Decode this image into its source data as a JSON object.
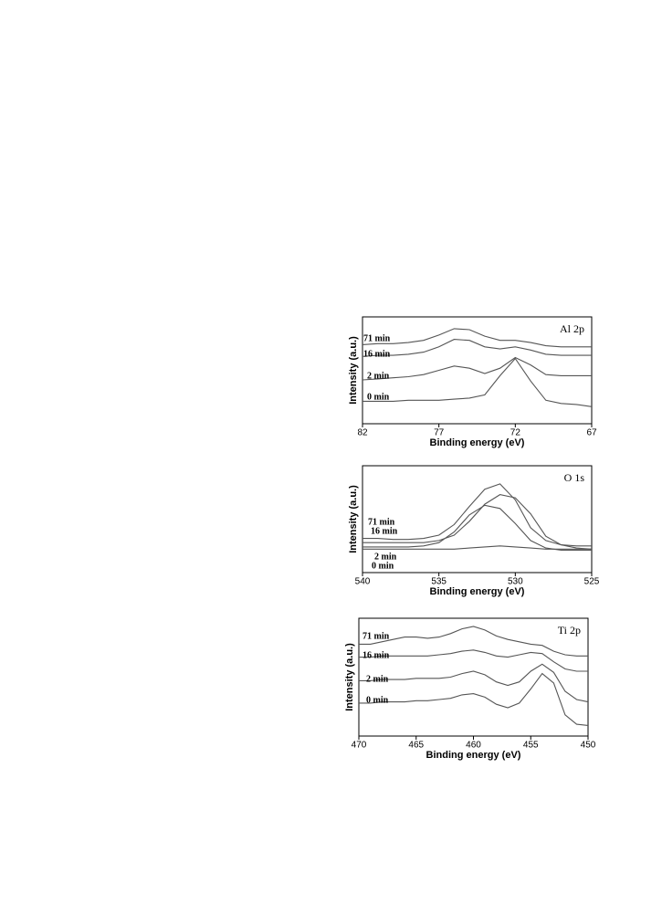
{
  "chart_data": [
    {
      "type": "line",
      "title": "Al 2p",
      "xlabel": "Binding energy (eV)",
      "ylabel": "Intensity  (a.u.)",
      "x": [
        82,
        81,
        80,
        79,
        78,
        77,
        76,
        75,
        74,
        73,
        72,
        71,
        70,
        69,
        68,
        67
      ],
      "xlim": [
        82,
        67
      ],
      "xticks": [
        82,
        77,
        72,
        67
      ],
      "ylim": [
        0,
        100
      ],
      "series": [
        {
          "name": "71 min",
          "color": "#555555",
          "values": [
            74,
            75,
            75,
            76,
            78,
            83,
            89,
            88,
            82,
            78,
            78,
            76,
            73,
            72,
            72,
            72
          ]
        },
        {
          "name": "16 min",
          "color": "#555555",
          "values": [
            63,
            64,
            64,
            65,
            67,
            72,
            79,
            78,
            72,
            70,
            72,
            69,
            65,
            64,
            64,
            64
          ]
        },
        {
          "name": "2 min",
          "color": "#555555",
          "values": [
            41,
            42,
            43,
            44,
            46,
            50,
            54,
            52,
            47,
            52,
            62,
            55,
            46,
            45,
            45,
            45
          ]
        },
        {
          "name": "0 min",
          "color": "#555555",
          "values": [
            21,
            21,
            21,
            22,
            22,
            22,
            23,
            24,
            27,
            45,
            61,
            40,
            22,
            19,
            18,
            16
          ]
        }
      ]
    },
    {
      "type": "line",
      "title": "O 1s",
      "xlabel": "Binding energy (eV)",
      "ylabel": "Intensity  (a.u.)",
      "x": [
        540,
        539,
        538,
        537,
        536,
        535,
        534,
        533,
        532,
        531,
        530,
        529,
        528,
        527,
        526,
        525
      ],
      "xlim": [
        540,
        525
      ],
      "xticks": [
        540,
        535,
        530,
        525
      ],
      "ylim": [
        0,
        100
      ],
      "series": [
        {
          "name": "71 min",
          "color": "#555555",
          "values": [
            32,
            32,
            31,
            31,
            32,
            35,
            45,
            62,
            78,
            83,
            68,
            42,
            30,
            26,
            25,
            25
          ]
        },
        {
          "name": "16 min",
          "color": "#555555",
          "values": [
            28,
            28,
            28,
            28,
            28,
            30,
            35,
            48,
            64,
            73,
            70,
            55,
            34,
            26,
            23,
            22
          ]
        },
        {
          "name": "2 min",
          "color": "#555555",
          "values": [
            24,
            24,
            24,
            24,
            25,
            28,
            38,
            54,
            63,
            60,
            46,
            30,
            23,
            21,
            21,
            21
          ]
        },
        {
          "name": "0 min",
          "color": "#555555",
          "values": [
            22,
            22,
            22,
            22,
            22,
            22,
            22,
            23,
            24,
            25,
            24,
            23,
            22,
            22,
            22,
            22
          ]
        }
      ]
    },
    {
      "type": "line",
      "title": "Ti 2p",
      "xlabel": "Binding energy (eV)",
      "ylabel": "Intensity  (a.u.)",
      "x": [
        470,
        469,
        468,
        467,
        466,
        465,
        464,
        463,
        462,
        461,
        460,
        459,
        458,
        457,
        456,
        455,
        454,
        453,
        452,
        451,
        450
      ],
      "xlim": [
        470,
        450
      ],
      "xticks": [
        470,
        465,
        460,
        455,
        450
      ],
      "ylim": [
        0,
        100
      ],
      "series": [
        {
          "name": "71 min",
          "color": "#555555",
          "values": [
            78,
            78,
            80,
            82,
            84,
            84,
            83,
            84,
            87,
            91,
            93,
            90,
            85,
            82,
            80,
            78,
            77,
            72,
            69,
            68,
            68
          ]
        },
        {
          "name": "16 min",
          "color": "#555555",
          "values": [
            67,
            67,
            68,
            68,
            68,
            68,
            68,
            69,
            70,
            72,
            73,
            71,
            68,
            67,
            69,
            71,
            70,
            63,
            57,
            55,
            55
          ]
        },
        {
          "name": "2 min",
          "color": "#555555",
          "values": [
            47,
            47,
            48,
            48,
            48,
            49,
            49,
            49,
            50,
            53,
            55,
            52,
            46,
            43,
            46,
            55,
            61,
            54,
            38,
            31,
            29
          ]
        },
        {
          "name": "0 min",
          "color": "#555555",
          "values": [
            28,
            28,
            29,
            29,
            29,
            30,
            30,
            31,
            32,
            35,
            36,
            33,
            27,
            24,
            28,
            40,
            53,
            45,
            18,
            10,
            9
          ]
        }
      ]
    }
  ]
}
